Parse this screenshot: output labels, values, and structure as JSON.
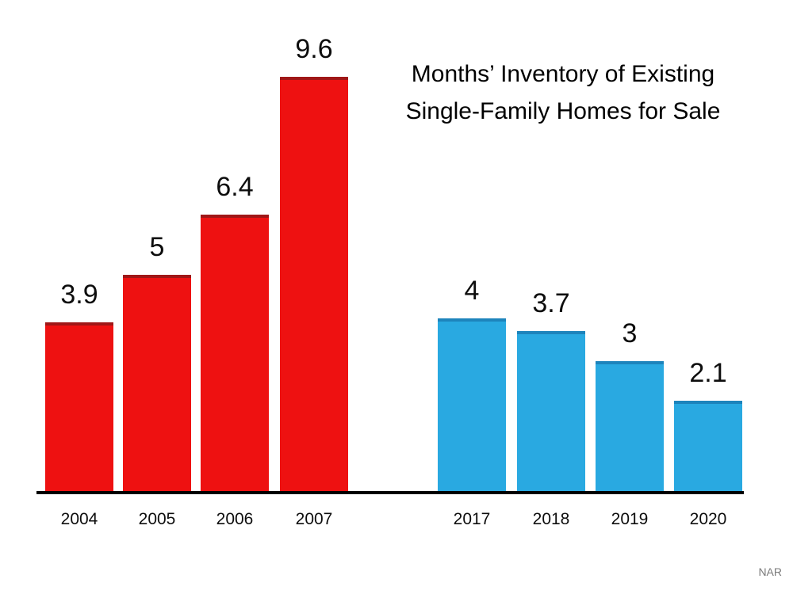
{
  "chart_data": {
    "type": "bar",
    "title": "Months’ Inventory of Existing Single-Family Homes for Sale",
    "title_lines": [
      "Months’ Inventory of Existing",
      "Single-Family Homes for Sale"
    ],
    "categories": [
      "2004",
      "2005",
      "2006",
      "2007",
      "2017",
      "2018",
      "2019",
      "2020"
    ],
    "series": [
      {
        "name": "Months' Inventory",
        "values": [
          3.9,
          5,
          6.4,
          9.6,
          4,
          3.7,
          3,
          2.1
        ]
      }
    ],
    "data_labels": [
      "3.9",
      "5",
      "6.4",
      "9.6",
      "4",
      "3.7",
      "3",
      "2.1"
    ],
    "bar_groups": [
      "red",
      "red",
      "red",
      "red",
      "blue",
      "blue",
      "blue",
      "blue"
    ],
    "bar_styles": {
      "red": {
        "fill": "#ee1111",
        "edge": "#a01717"
      },
      "blue": {
        "fill": "#29a9e1",
        "edge": "#1d84bc"
      }
    },
    "xlabel": "",
    "ylabel": "",
    "ylim": [
      0,
      10
    ],
    "grid": false,
    "legend": "none"
  },
  "source": "NAR"
}
